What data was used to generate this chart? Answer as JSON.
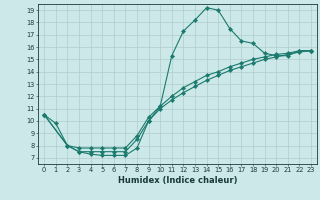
{
  "xlabel": "Humidex (Indice chaleur)",
  "bg_color": "#cde8e8",
  "line_color": "#1a7a6e",
  "grid_color": "#b0cccc",
  "xlim": [
    -0.5,
    23.5
  ],
  "ylim": [
    6.5,
    19.5
  ],
  "xticks": [
    0,
    1,
    2,
    3,
    4,
    5,
    6,
    7,
    8,
    9,
    10,
    11,
    12,
    13,
    14,
    15,
    16,
    17,
    18,
    19,
    20,
    21,
    22,
    23
  ],
  "yticks": [
    7,
    8,
    9,
    10,
    11,
    12,
    13,
    14,
    15,
    16,
    17,
    18,
    19
  ],
  "line1_x": [
    0,
    1,
    2,
    3,
    4,
    5,
    6,
    7,
    8,
    9,
    10,
    11,
    12,
    13,
    14,
    15,
    16,
    17,
    18,
    19,
    20,
    21,
    22,
    23
  ],
  "line1_y": [
    10.5,
    9.8,
    8.0,
    7.5,
    7.3,
    7.2,
    7.2,
    7.2,
    7.8,
    10.0,
    11.2,
    15.3,
    17.3,
    18.2,
    19.2,
    19.0,
    17.5,
    16.5,
    16.3,
    15.5,
    15.3,
    15.3,
    15.7,
    15.7
  ],
  "line2_x": [
    0,
    2,
    3,
    4,
    5,
    6,
    7,
    8,
    9,
    10,
    11,
    12,
    13,
    14,
    15,
    16,
    17,
    18,
    19,
    20,
    21,
    22,
    23
  ],
  "line2_y": [
    10.5,
    8.0,
    7.8,
    7.8,
    7.8,
    7.8,
    7.8,
    8.8,
    10.3,
    11.2,
    12.0,
    12.7,
    13.2,
    13.7,
    14.0,
    14.4,
    14.7,
    15.0,
    15.2,
    15.4,
    15.5,
    15.7,
    15.7
  ],
  "line3_x": [
    0,
    2,
    3,
    4,
    5,
    6,
    7,
    8,
    9,
    10,
    11,
    12,
    13,
    14,
    15,
    16,
    17,
    18,
    19,
    20,
    21,
    22,
    23
  ],
  "line3_y": [
    10.5,
    8.0,
    7.5,
    7.5,
    7.5,
    7.5,
    7.5,
    8.5,
    10.0,
    11.0,
    11.7,
    12.3,
    12.8,
    13.3,
    13.7,
    14.1,
    14.4,
    14.7,
    15.0,
    15.2,
    15.4,
    15.6,
    15.7
  ]
}
